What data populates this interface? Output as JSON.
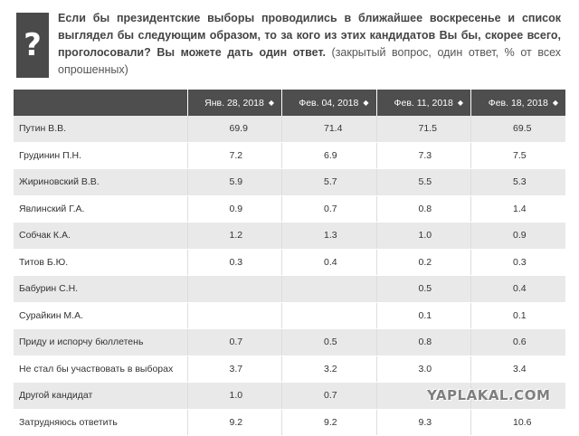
{
  "question_icon": "?",
  "question": {
    "main": "Если бы президентские выборы проводились в ближайшее воскресенье и список выглядел бы следующим образом, то за кого из этих кандидатов Вы бы, скорее всего, проголосовали? Вы можете дать один ответ.",
    "note": "(закрытый вопрос, один ответ, % от всех опрошенных)"
  },
  "table": {
    "columns": [
      "",
      "Янв. 28, 2018",
      "Фев. 04, 2018",
      "Фев. 11, 2018",
      "Фев. 18, 2018"
    ],
    "sort_icon": "sort-updown-icon",
    "sort_glyph": "◆",
    "rows": [
      {
        "name": "Путин В.В.",
        "values": [
          "69.9",
          "71.4",
          "71.5",
          "69.5"
        ]
      },
      {
        "name": "Грудинин П.Н.",
        "values": [
          "7.2",
          "6.9",
          "7.3",
          "7.5"
        ]
      },
      {
        "name": "Жириновский В.В.",
        "values": [
          "5.9",
          "5.7",
          "5.5",
          "5.3"
        ]
      },
      {
        "name": "Явлинский Г.А.",
        "values": [
          "0.9",
          "0.7",
          "0.8",
          "1.4"
        ]
      },
      {
        "name": "Собчак К.А.",
        "values": [
          "1.2",
          "1.3",
          "1.0",
          "0.9"
        ]
      },
      {
        "name": "Титов Б.Ю.",
        "values": [
          "0.3",
          "0.4",
          "0.2",
          "0.3"
        ]
      },
      {
        "name": "Бабурин С.Н.",
        "values": [
          "",
          "",
          "0.5",
          "0.4"
        ]
      },
      {
        "name": "Сурайкин М.А.",
        "values": [
          "",
          "",
          "0.1",
          "0.1"
        ]
      },
      {
        "name": "Приду и испорчу бюллетень",
        "values": [
          "0.7",
          "0.5",
          "0.8",
          "0.6"
        ]
      },
      {
        "name": "Не стал бы участвовать в выборах",
        "values": [
          "3.7",
          "3.2",
          "3.0",
          "3.4"
        ]
      },
      {
        "name": "Другой кандидат",
        "values": [
          "1.0",
          "0.7",
          "",
          ""
        ]
      },
      {
        "name": "Затрудняюсь ответить",
        "values": [
          "9.2",
          "9.2",
          "9.3",
          "10.6"
        ]
      }
    ]
  },
  "watermark": "YAPLAKAL.COM",
  "colors": {
    "header_bg": "#4e4e4e",
    "row_alt_bg": "#e9e9e9",
    "icon_bg": "#4a4a4a"
  }
}
